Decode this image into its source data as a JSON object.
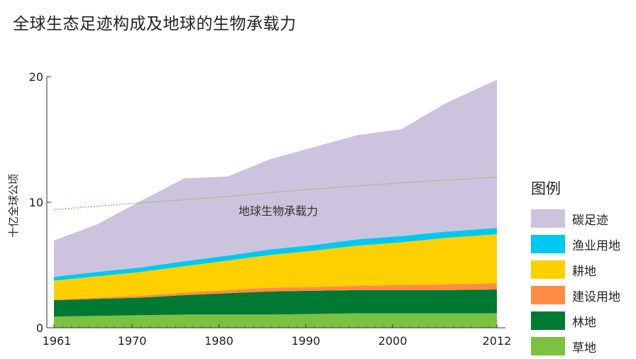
{
  "chart_data": {
    "type": "area",
    "title": "全球生态足迹构成及地球的生物承载力",
    "ylabel": "十亿全球公顷",
    "ylim": [
      0,
      20
    ],
    "xlim": [
      1961,
      2012
    ],
    "y_ticks": [
      "0",
      "10",
      "20"
    ],
    "x_ticks": [
      {
        "label": "1961",
        "value": 1961
      },
      {
        "label": "1970",
        "value": 1970
      },
      {
        "label": "1980",
        "value": 1980
      },
      {
        "label": "1990",
        "value": 1990
      },
      {
        "label": "2000",
        "value": 2000
      },
      {
        "label": "2012",
        "value": 2012
      }
    ],
    "x": [
      1961,
      1966,
      1971,
      1976,
      1981,
      1986,
      1991,
      1996,
      2001,
      2006,
      2012
    ],
    "stacked": true,
    "series": [
      {
        "name": "草地",
        "color": "#7cc142",
        "values": [
          0.9,
          0.95,
          1.0,
          1.05,
          1.05,
          1.05,
          1.1,
          1.15,
          1.15,
          1.15,
          1.15
        ]
      },
      {
        "name": "林地",
        "color": "#007a33",
        "values": [
          1.3,
          1.35,
          1.4,
          1.55,
          1.7,
          1.85,
          1.85,
          1.85,
          1.85,
          1.85,
          1.9
        ]
      },
      {
        "name": "建设用地",
        "color": "#ff8c42",
        "values": [
          0.05,
          0.1,
          0.15,
          0.2,
          0.25,
          0.3,
          0.3,
          0.35,
          0.4,
          0.45,
          0.5
        ]
      },
      {
        "name": "耕地",
        "color": "#ffd000",
        "values": [
          1.5,
          1.7,
          1.9,
          2.1,
          2.35,
          2.6,
          2.9,
          3.2,
          3.4,
          3.7,
          3.9
        ]
      },
      {
        "name": "渔业用地",
        "color": "#00c8f0",
        "values": [
          0.3,
          0.35,
          0.35,
          0.4,
          0.4,
          0.45,
          0.45,
          0.5,
          0.5,
          0.5,
          0.5
        ]
      },
      {
        "name": "碳足迹",
        "color": "#ccc3df",
        "values": [
          2.9,
          3.8,
          5.3,
          6.6,
          6.3,
          7.2,
          7.8,
          8.3,
          8.5,
          10.2,
          11.8
        ]
      }
    ],
    "biocapacity": {
      "label": "地球生物承载力",
      "color": "#7cc142",
      "x": [
        1961,
        1970,
        1980,
        1990,
        2000,
        2012
      ],
      "values": [
        9.4,
        9.9,
        10.4,
        11.0,
        11.5,
        12.0
      ]
    }
  },
  "legend": {
    "title": "图例",
    "items": [
      "碳足迹",
      "渔业用地",
      "耕地",
      "建设用地",
      "林地",
      "草地"
    ]
  }
}
